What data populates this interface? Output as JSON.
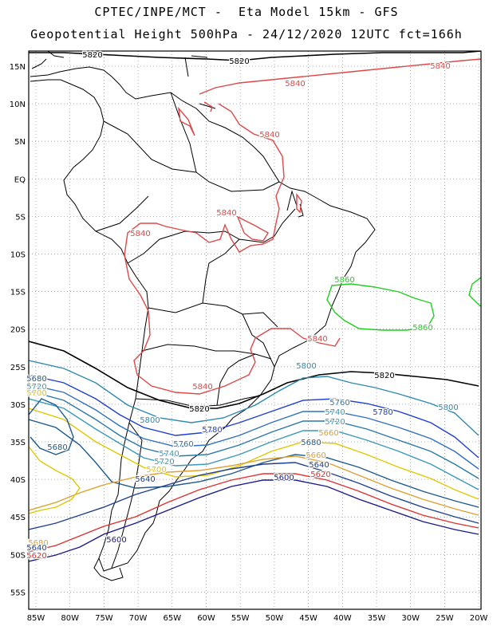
{
  "header": {
    "title_line1": "CPTEC/INPE/MCT -  Eta Model 15km - GFS",
    "title_line2": "Geopotential Height 500hPa - 24/12/2020 12UTC fct=166h"
  },
  "lat_labels": [
    "15N",
    "10N",
    "5N",
    "EQ",
    "5S",
    "10S",
    "15S",
    "20S",
    "25S",
    "30S",
    "35S",
    "40S",
    "45S",
    "50S",
    "55S"
  ],
  "lon_labels": [
    "85W",
    "80W",
    "75W",
    "70W",
    "65W",
    "60W",
    "55W",
    "50W",
    "45W",
    "40W",
    "35W",
    "30W",
    "25W",
    "20W"
  ],
  "contour_levels": [
    {
      "value": "5600",
      "color": "#1a1a8c"
    },
    {
      "value": "5620",
      "color": "#e03030"
    },
    {
      "value": "5640",
      "color": "#1f3f8f"
    },
    {
      "value": "5660",
      "color": "#e0a030"
    },
    {
      "value": "5680",
      "color": "#1e5a8c"
    },
    {
      "value": "5700",
      "color": "#f0e000"
    },
    {
      "value": "5720",
      "color": "#3a98b8"
    },
    {
      "value": "5740",
      "color": "#2a78a8"
    },
    {
      "value": "5760",
      "color": "#1d3fd8"
    },
    {
      "value": "5780",
      "color": "#3070c0"
    },
    {
      "value": "5800",
      "color": "#2e8ab0"
    },
    {
      "value": "5820",
      "color": "#000000"
    },
    {
      "value": "5840",
      "color": "#e04848"
    },
    {
      "value": "5860",
      "color": "#20d020"
    }
  ],
  "contour_labels": [
    {
      "text": "5820",
      "color": "#000000"
    },
    {
      "text": "5820",
      "color": "#000000"
    },
    {
      "text": "5840",
      "color": "#e04848"
    },
    {
      "text": "5840",
      "color": "#e04848"
    },
    {
      "text": "5840",
      "color": "#e04848"
    },
    {
      "text": "5840",
      "color": "#e04848"
    },
    {
      "text": "5840",
      "color": "#e04848"
    },
    {
      "text": "5840",
      "color": "#e04848"
    },
    {
      "text": "5840",
      "color": "#e04848"
    },
    {
      "text": "5860",
      "color": "#20d020"
    },
    {
      "text": "5860",
      "color": "#20d020"
    },
    {
      "text": "5800",
      "color": "#2e8ab0"
    },
    {
      "text": "5820",
      "color": "#000000"
    },
    {
      "text": "5820",
      "color": "#000000"
    },
    {
      "text": "5760",
      "color": "#2a78a8"
    },
    {
      "text": "5740",
      "color": "#3a98b8"
    },
    {
      "text": "5720",
      "color": "#3a98b8"
    },
    {
      "text": "5780",
      "color": "#1d3fd8"
    },
    {
      "text": "5800",
      "color": "#2e8ab0"
    },
    {
      "text": "5800",
      "color": "#2e8ab0"
    },
    {
      "text": "5780",
      "color": "#1d3fd8"
    },
    {
      "text": "5760",
      "color": "#2a78a8"
    },
    {
      "text": "5740",
      "color": "#3a98b8"
    },
    {
      "text": "5720",
      "color": "#3a98b8"
    },
    {
      "text": "5700",
      "color": "#e0c800"
    },
    {
      "text": "5680",
      "color": "#1e5a8c"
    },
    {
      "text": "5660",
      "color": "#e0a030"
    },
    {
      "text": "5640",
      "color": "#1f3f8f"
    },
    {
      "text": "5620",
      "color": "#e03030"
    },
    {
      "text": "5600",
      "color": "#1a1a8c"
    },
    {
      "text": "5680",
      "color": "#1e5a8c"
    },
    {
      "text": "5700",
      "color": "#e0c800"
    },
    {
      "text": "5680",
      "color": "#1e5a8c"
    },
    {
      "text": "5600",
      "color": "#1a1a8c"
    },
    {
      "text": "5780",
      "color": "#3070c0"
    },
    {
      "text": "5720",
      "color": "#3a98b8"
    },
    {
      "text": "5700",
      "color": "#e0c800"
    },
    {
      "text": "5680",
      "color": "#e0a030"
    },
    {
      "text": "5640",
      "color": "#1f3f8f"
    },
    {
      "text": "5620",
      "color": "#e03030"
    },
    {
      "text": "5660",
      "color": "#e0a030"
    },
    {
      "text": "5640",
      "color": "#1f3f8f"
    }
  ]
}
